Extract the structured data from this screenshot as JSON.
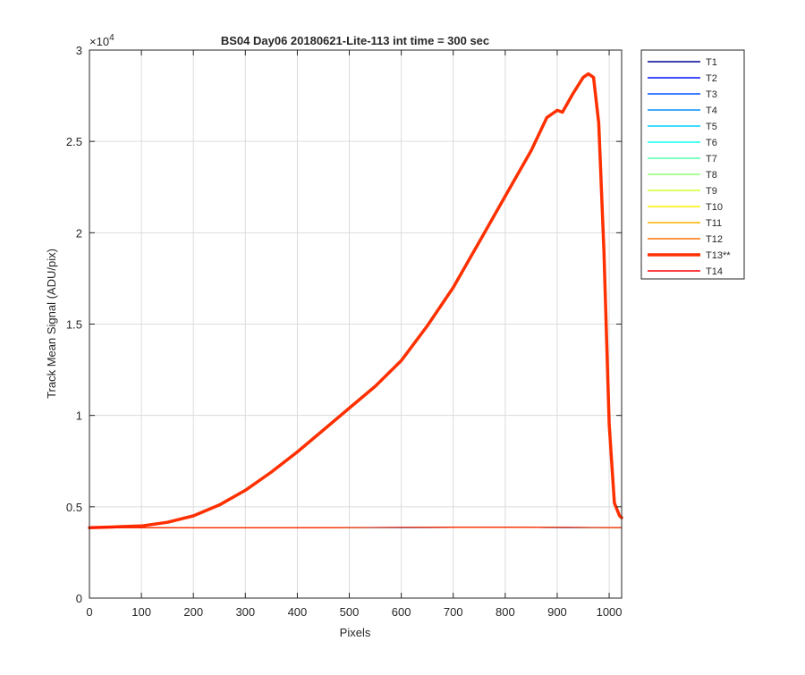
{
  "chart_data": {
    "type": "line",
    "title": "BS04 Day06 20180621-Lite-113 int time = 300 sec",
    "xlabel": "Pixels",
    "ylabel": "Track Mean Signal (ADU/pix)",
    "xlim": [
      0,
      1024
    ],
    "ylim": [
      0,
      30000
    ],
    "y_exponent_label": "×10",
    "y_exponent_power": "4",
    "x_ticks": [
      0,
      100,
      200,
      300,
      400,
      500,
      600,
      700,
      800,
      900,
      1000
    ],
    "x_tick_labels": [
      "0",
      "100",
      "200",
      "300",
      "400",
      "500",
      "600",
      "700",
      "800",
      "900",
      "1000"
    ],
    "y_ticks": [
      0,
      5000,
      10000,
      15000,
      20000,
      25000,
      30000
    ],
    "y_tick_labels": [
      "0",
      "0.5",
      "1",
      "1.5",
      "2",
      "2.5",
      "3"
    ],
    "grid": true,
    "legend_position": "outside-right-top",
    "series": [
      {
        "name": "T1",
        "color": "#00008f",
        "emphasis": false,
        "x": [
          0,
          200,
          400,
          600,
          800,
          1024
        ],
        "y": [
          3850,
          3840,
          3845,
          3860,
          3870,
          3850
        ]
      },
      {
        "name": "T2",
        "color": "#0010ff",
        "emphasis": false,
        "x": [
          0,
          200,
          400,
          600,
          800,
          1024
        ],
        "y": [
          3845,
          3840,
          3845,
          3860,
          3870,
          3850
        ]
      },
      {
        "name": "T3",
        "color": "#0050ff",
        "emphasis": false,
        "x": [
          0,
          200,
          400,
          600,
          800,
          1024
        ],
        "y": [
          3850,
          3842,
          3848,
          3862,
          3872,
          3852
        ]
      },
      {
        "name": "T4",
        "color": "#0090ff",
        "emphasis": false,
        "x": [
          0,
          200,
          400,
          600,
          800,
          1024
        ],
        "y": [
          3848,
          3841,
          3846,
          3861,
          3871,
          3851
        ]
      },
      {
        "name": "T5",
        "color": "#00d0ff",
        "emphasis": false,
        "x": [
          0,
          200,
          400,
          600,
          800,
          1024
        ],
        "y": [
          3852,
          3843,
          3849,
          3863,
          3873,
          3853
        ]
      },
      {
        "name": "T6",
        "color": "#10ffef",
        "emphasis": false,
        "x": [
          0,
          200,
          400,
          600,
          800,
          1024
        ],
        "y": [
          3850,
          3842,
          3847,
          3862,
          3872,
          3852
        ]
      },
      {
        "name": "T7",
        "color": "#50ffaf",
        "emphasis": false,
        "x": [
          0,
          200,
          400,
          600,
          800,
          1024
        ],
        "y": [
          3855,
          3845,
          3850,
          3865,
          3875,
          3855
        ]
      },
      {
        "name": "T8",
        "color": "#90ff70",
        "emphasis": false,
        "x": [
          0,
          200,
          400,
          600,
          800,
          1024
        ],
        "y": [
          3853,
          3844,
          3849,
          3864,
          3874,
          3854
        ]
      },
      {
        "name": "T9",
        "color": "#cfff30",
        "emphasis": false,
        "x": [
          0,
          200,
          400,
          600,
          800,
          1024
        ],
        "y": [
          3858,
          3848,
          3853,
          3868,
          3878,
          3858
        ]
      },
      {
        "name": "T10",
        "color": "#ffef00",
        "emphasis": false,
        "x": [
          0,
          200,
          400,
          600,
          800,
          1024
        ],
        "y": [
          3856,
          3847,
          3852,
          3867,
          3877,
          3857
        ]
      },
      {
        "name": "T11",
        "color": "#ffb000",
        "emphasis": false,
        "x": [
          0,
          200,
          400,
          600,
          800,
          1024
        ],
        "y": [
          3860,
          3850,
          3855,
          3870,
          3880,
          3860
        ]
      },
      {
        "name": "T12",
        "color": "#ff7000",
        "emphasis": false,
        "x": [
          0,
          200,
          400,
          600,
          800,
          1024
        ],
        "y": [
          3858,
          3849,
          3854,
          3869,
          3879,
          3859
        ]
      },
      {
        "name": "T13**",
        "color": "#ff3000",
        "emphasis": true,
        "x": [
          0,
          50,
          100,
          150,
          200,
          250,
          300,
          350,
          400,
          450,
          500,
          550,
          600,
          650,
          700,
          750,
          800,
          850,
          880,
          900,
          910,
          930,
          950,
          960,
          970,
          980,
          990,
          1000,
          1010,
          1020,
          1024
        ],
        "y": [
          3850,
          3900,
          3950,
          4150,
          4500,
          5100,
          5900,
          6900,
          8000,
          9200,
          10400,
          11600,
          13000,
          14900,
          17000,
          19500,
          22000,
          24500,
          26300,
          26700,
          26600,
          27600,
          28500,
          28700,
          28500,
          26000,
          19000,
          9500,
          5200,
          4500,
          4400
        ]
      },
      {
        "name": "T14",
        "color": "#ff0000",
        "emphasis": false,
        "x": [
          0,
          200,
          400,
          600,
          800,
          1024
        ],
        "y": [
          3862,
          3852,
          3857,
          3872,
          3882,
          3862
        ]
      }
    ]
  }
}
